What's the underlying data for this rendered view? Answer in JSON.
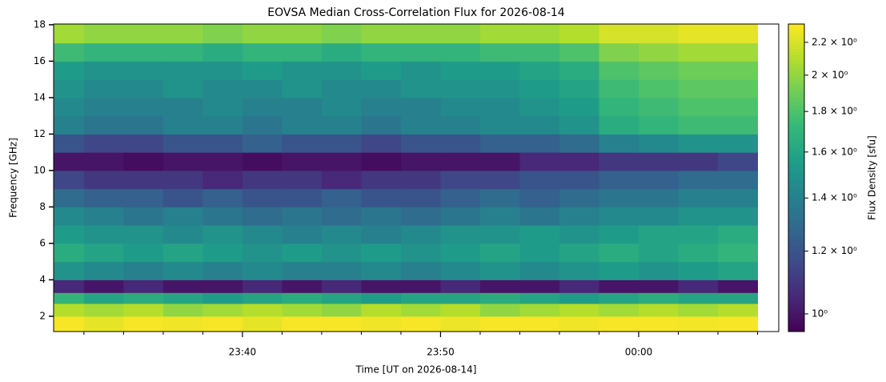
{
  "chart_data": {
    "type": "heatmap",
    "title": "EOVSA Median Cross-Correlation Flux for 2026-08-14",
    "x_label": "Time [UT on 2026-08-14]",
    "y_label": "Frequency [GHz]",
    "colorbar_label": "Flux Density [sfu]",
    "colormap": "viridis",
    "color_scale": "log",
    "x_bins": [
      1410.47,
      1412,
      1414,
      1416,
      1418,
      1420,
      1422,
      1424,
      1426,
      1428,
      1430,
      1432,
      1434,
      1436,
      1438,
      1440,
      1442,
      1444,
      1446
    ],
    "y_bins": [
      1.16,
      2,
      2.7,
      3.3,
      4,
      5,
      6,
      7,
      8,
      9,
      10,
      11,
      12,
      13,
      14,
      15,
      16,
      17,
      18.04
    ],
    "xlim": [
      1410.47,
      1447.07
    ],
    "ylim": [
      1.16,
      18.04
    ],
    "clim": [
      0.95,
      2.32
    ],
    "xticks": [
      {
        "value": 1420,
        "label": "23:40"
      },
      {
        "value": 1430,
        "label": "23:50"
      },
      {
        "value": 1440,
        "label": "00:00"
      }
    ],
    "xminorticks": [
      1412,
      1414,
      1416,
      1418,
      1422,
      1424,
      1426,
      1428,
      1432,
      1434,
      1436,
      1438,
      1442,
      1444,
      1446
    ],
    "yticks": [
      2,
      4,
      6,
      8,
      10,
      12,
      14,
      16,
      18
    ],
    "cticks": [
      {
        "value": 1,
        "label": "10⁰"
      },
      {
        "value": 1.2,
        "label": "1.2 × 10⁰"
      },
      {
        "value": 1.4,
        "label": "1.4 × 10⁰"
      },
      {
        "value": 1.6,
        "label": "1.6 × 10⁰"
      },
      {
        "value": 1.8,
        "label": "1.8 × 10⁰"
      },
      {
        "value": 2,
        "label": "2 × 10⁰"
      },
      {
        "value": 2.2,
        "label": "2.2 × 10⁰"
      }
    ],
    "values": [
      [
        2.3,
        2.25,
        2.3,
        2.28,
        2.3,
        2.25,
        2.3,
        2.3,
        2.28,
        2.3,
        2.27,
        2.3,
        2.3,
        2.28,
        2.3,
        2.3,
        2.29,
        2.3
      ],
      [
        2.1,
        2.05,
        2.1,
        2.0,
        2.05,
        2.1,
        2.05,
        2.0,
        2.1,
        2.05,
        2.1,
        2.0,
        2.05,
        2.1,
        2.05,
        2.1,
        2.05,
        2.1
      ],
      [
        1.7,
        1.6,
        1.65,
        1.6,
        1.55,
        1.6,
        1.65,
        1.6,
        1.55,
        1.6,
        1.6,
        1.65,
        1.6,
        1.55,
        1.6,
        1.65,
        1.6,
        1.6
      ],
      [
        1.05,
        1.0,
        1.05,
        1.0,
        1.0,
        1.05,
        1.0,
        1.05,
        1.0,
        1.0,
        1.05,
        1.0,
        1.0,
        1.05,
        1.0,
        1.0,
        1.05,
        1.0
      ],
      [
        1.5,
        1.45,
        1.4,
        1.45,
        1.4,
        1.45,
        1.4,
        1.4,
        1.45,
        1.4,
        1.45,
        1.5,
        1.45,
        1.5,
        1.55,
        1.5,
        1.55,
        1.6
      ],
      [
        1.65,
        1.6,
        1.55,
        1.6,
        1.55,
        1.5,
        1.55,
        1.5,
        1.55,
        1.5,
        1.55,
        1.6,
        1.55,
        1.6,
        1.65,
        1.6,
        1.65,
        1.7
      ],
      [
        1.55,
        1.5,
        1.5,
        1.45,
        1.5,
        1.45,
        1.4,
        1.45,
        1.4,
        1.45,
        1.5,
        1.5,
        1.55,
        1.5,
        1.55,
        1.6,
        1.6,
        1.65
      ],
      [
        1.45,
        1.4,
        1.35,
        1.4,
        1.35,
        1.3,
        1.35,
        1.3,
        1.35,
        1.3,
        1.35,
        1.4,
        1.35,
        1.4,
        1.45,
        1.45,
        1.5,
        1.5
      ],
      [
        1.3,
        1.25,
        1.25,
        1.2,
        1.25,
        1.2,
        1.2,
        1.25,
        1.2,
        1.2,
        1.25,
        1.3,
        1.25,
        1.3,
        1.35,
        1.35,
        1.4,
        1.4
      ],
      [
        1.15,
        1.1,
        1.1,
        1.1,
        1.05,
        1.1,
        1.1,
        1.05,
        1.1,
        1.1,
        1.15,
        1.15,
        1.2,
        1.2,
        1.25,
        1.25,
        1.3,
        1.3
      ],
      [
        1.0,
        1.0,
        0.98,
        1.0,
        1.0,
        0.98,
        1.0,
        1.0,
        0.98,
        1.0,
        1.0,
        1.0,
        1.05,
        1.05,
        1.1,
        1.1,
        1.1,
        1.15
      ],
      [
        1.2,
        1.15,
        1.15,
        1.2,
        1.2,
        1.25,
        1.2,
        1.2,
        1.15,
        1.2,
        1.2,
        1.25,
        1.25,
        1.3,
        1.4,
        1.45,
        1.5,
        1.5
      ],
      [
        1.4,
        1.35,
        1.35,
        1.4,
        1.4,
        1.35,
        1.4,
        1.4,
        1.35,
        1.4,
        1.4,
        1.45,
        1.45,
        1.5,
        1.65,
        1.7,
        1.75,
        1.75
      ],
      [
        1.45,
        1.4,
        1.4,
        1.4,
        1.45,
        1.4,
        1.4,
        1.45,
        1.4,
        1.4,
        1.45,
        1.45,
        1.5,
        1.55,
        1.7,
        1.75,
        1.8,
        1.8
      ],
      [
        1.5,
        1.45,
        1.45,
        1.5,
        1.45,
        1.45,
        1.5,
        1.45,
        1.45,
        1.5,
        1.5,
        1.5,
        1.55,
        1.6,
        1.75,
        1.8,
        1.85,
        1.85
      ],
      [
        1.55,
        1.5,
        1.5,
        1.5,
        1.5,
        1.55,
        1.5,
        1.5,
        1.55,
        1.5,
        1.55,
        1.55,
        1.6,
        1.65,
        1.8,
        1.85,
        1.9,
        1.9
      ],
      [
        1.75,
        1.7,
        1.7,
        1.7,
        1.65,
        1.7,
        1.7,
        1.65,
        1.7,
        1.7,
        1.7,
        1.75,
        1.75,
        1.8,
        1.95,
        2.0,
        2.05,
        2.05
      ],
      [
        2.05,
        2.0,
        2.0,
        2.0,
        1.95,
        2.0,
        2.0,
        1.95,
        2.0,
        2.0,
        2.0,
        2.05,
        2.05,
        2.1,
        2.2,
        2.2,
        2.25,
        2.25
      ]
    ]
  }
}
